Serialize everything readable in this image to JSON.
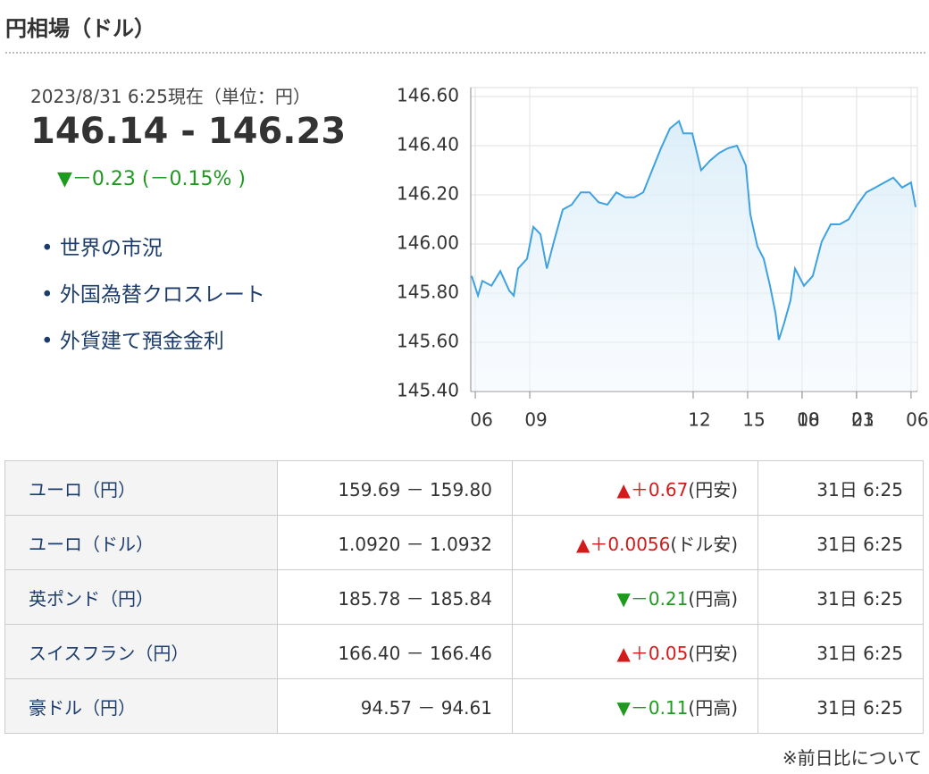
{
  "header": {
    "title": "円相場（ドル）"
  },
  "quote": {
    "timestamp": "2023/8/31 6:25現在（単位：円）",
    "price": "146.14 - 146.23",
    "change": "▼－0.23 (－0.15% )",
    "change_color": "#1e9b1e"
  },
  "links": [
    "世界の市況",
    "外国為替クロスレート",
    "外貨建て預金金利"
  ],
  "chart_data": {
    "type": "line",
    "color": "#3ea2e0",
    "grid": true,
    "x": [
      -0.2,
      0.15,
      0.39,
      0.89,
      1.38,
      1.87,
      2.12,
      2.36,
      2.85,
      3.2,
      3.59,
      3.94,
      4.33,
      4.82,
      5.31,
      5.81,
      6.3,
      6.79,
      7.28,
      7.77,
      8.26,
      8.76,
      9.25,
      9.74,
      10.23,
      10.72,
      11.22,
      11.46,
      11.95,
      12.44,
      12.94,
      13.43,
      13.92,
      14.41,
      14.9,
      15.15,
      15.54,
      15.89,
      16.23,
      16.53,
      16.72,
      17.02,
      17.36,
      17.61,
      18.1,
      18.59,
      19.08,
      19.58,
      20.07,
      20.56,
      21.05,
      21.54,
      22.04,
      22.53,
      23.02,
      23.51,
      24.0,
      24.25
    ],
    "values": [
      145.87,
      145.79,
      145.85,
      145.83,
      145.89,
      145.81,
      145.79,
      145.9,
      145.94,
      146.07,
      146.04,
      145.9,
      146.01,
      146.14,
      146.16,
      146.21,
      146.21,
      146.17,
      146.16,
      146.21,
      146.19,
      146.19,
      146.21,
      146.3,
      146.39,
      146.47,
      146.5,
      146.45,
      146.45,
      146.3,
      146.34,
      146.37,
      146.39,
      146.4,
      146.32,
      146.12,
      145.99,
      145.94,
      145.83,
      145.72,
      145.61,
      145.68,
      145.77,
      145.9,
      145.83,
      145.87,
      146.01,
      146.08,
      146.08,
      146.1,
      146.16,
      146.21,
      146.23,
      146.25,
      146.27,
      146.23,
      146.25,
      146.15
    ],
    "xlim": [
      -0.25,
      24.35
    ],
    "xticks": [
      {
        "value": 0,
        "label": "06"
      },
      {
        "value": 3,
        "label": "09"
      },
      12,
      15,
      18,
      21,
      {
        "value": 18.0001,
        "label": "00"
      },
      {
        "value": 21.0001,
        "label": "03"
      },
      {
        "value": 24,
        "label": "06"
      }
    ],
    "ylim": [
      145.4,
      146.6
    ],
    "yticks": [
      {
        "value": 145.4,
        "label": "145.40"
      },
      {
        "value": 145.6,
        "label": "145.60"
      },
      {
        "value": 145.8,
        "label": "145.80"
      },
      {
        "value": 146.0,
        "label": "146.00"
      },
      {
        "value": 146.2,
        "label": "146.20"
      },
      {
        "value": 146.4,
        "label": "146.40"
      },
      {
        "value": 146.6,
        "label": "146.60"
      }
    ]
  },
  "table": {
    "rows": [
      {
        "name": "ユーロ（円）",
        "rate": "159.69 － 159.80",
        "change": "▲＋0.67",
        "note": "(円安)",
        "time": "31日 6:25",
        "color": "#d41a1a"
      },
      {
        "name": "ユーロ（ドル）",
        "rate": "1.0920 － 1.0932",
        "change": "▲＋0.0056",
        "note": "(ドル安)",
        "time": "31日 6:25",
        "color": "#d41a1a"
      },
      {
        "name": "英ポンド（円）",
        "rate": "185.78 － 185.84",
        "change": "▼－0.21",
        "note": "(円高)",
        "time": "31日 6:25",
        "color": "#1e9b1e"
      },
      {
        "name": "スイスフラン（円）",
        "rate": "166.40 － 166.46",
        "change": "▲＋0.05",
        "note": "(円安)",
        "time": "31日 6:25",
        "color": "#d41a1a"
      },
      {
        "name": "豪ドル（円）",
        "rate": "94.57 － 94.61",
        "change": "▼－0.11",
        "note": "(円高)",
        "time": "31日 6:25",
        "color": "#1e9b1e"
      }
    ]
  },
  "footer": {
    "note": "※前日比について"
  }
}
